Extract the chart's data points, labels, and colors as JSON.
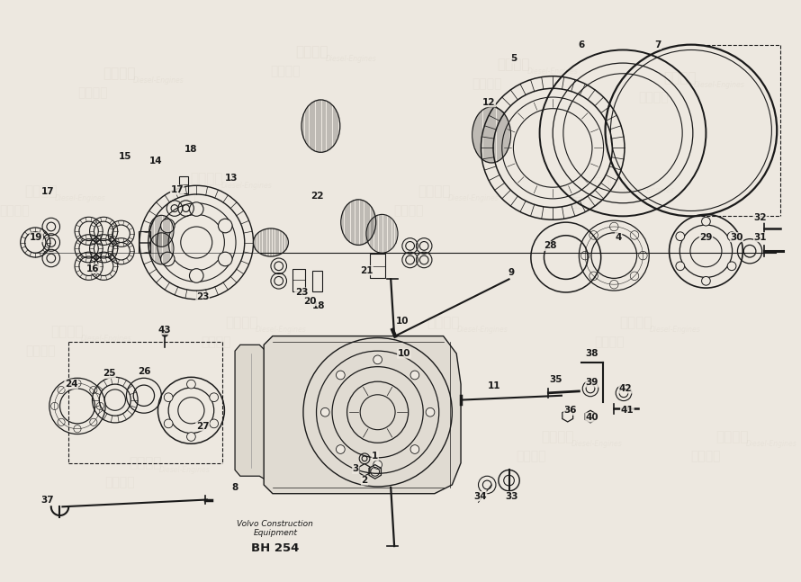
{
  "bg_color": "#ede8e0",
  "line_color": "#1a1a1a",
  "wm_color": "#c0b8a8",
  "part_number": "BH 254",
  "company_line1": "Volvo Construction",
  "company_line2": "Equipment",
  "watermarks": [
    [
      120,
      75,
      "柴发动力",
      11,
      15
    ],
    [
      340,
      50,
      "柴发动力",
      11,
      15
    ],
    [
      570,
      65,
      "柴发动力",
      11,
      15
    ],
    [
      760,
      80,
      "柴发动力",
      11,
      15
    ],
    [
      30,
      210,
      "柴发动力",
      11,
      12
    ],
    [
      220,
      195,
      "柴发动力",
      11,
      12
    ],
    [
      480,
      210,
      "柴发动力",
      11,
      12
    ],
    [
      680,
      200,
      "柴发动力",
      11,
      12
    ],
    [
      60,
      370,
      "柴发动力",
      11,
      12
    ],
    [
      260,
      360,
      "柴发动力",
      11,
      12
    ],
    [
      490,
      360,
      "柴发动力",
      11,
      12
    ],
    [
      710,
      360,
      "柴发动力",
      11,
      12
    ],
    [
      150,
      520,
      "柴发动力",
      11,
      12
    ],
    [
      400,
      510,
      "柴发动力",
      11,
      12
    ],
    [
      620,
      490,
      "柴发动力",
      11,
      12
    ],
    [
      820,
      490,
      "柴发动力",
      11,
      12
    ]
  ]
}
